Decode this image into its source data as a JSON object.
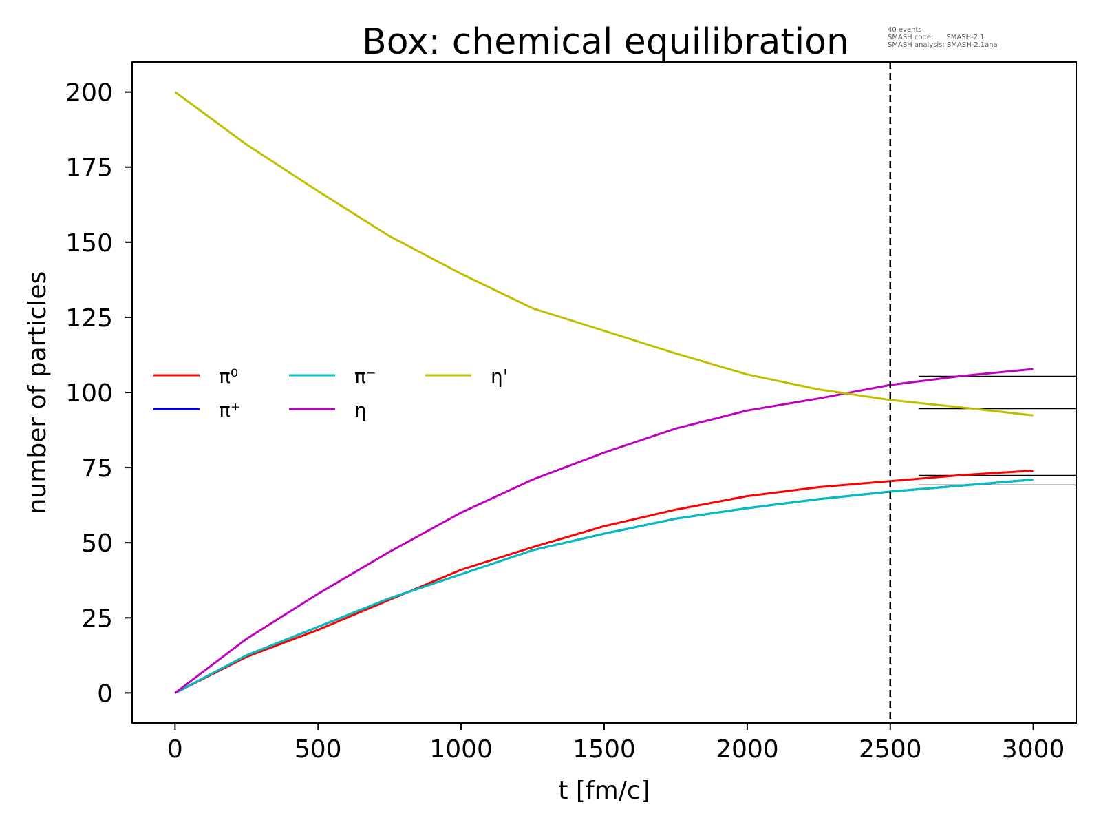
{
  "chart_data": {
    "type": "line",
    "title": "Box: chemical equilibration",
    "annotation": [
      "40 events",
      "SMASH code:      SMASH-2.1",
      "SMASH analysis: SMASH-2.1ana"
    ],
    "xlabel": "t [fm/c]",
    "ylabel": "number of particles",
    "xlim": [
      -150,
      3150
    ],
    "ylim": [
      -10,
      210
    ],
    "xticks": [
      0,
      500,
      1000,
      1500,
      2000,
      2500,
      3000
    ],
    "yticks": [
      0,
      25,
      50,
      75,
      100,
      125,
      150,
      175,
      200
    ],
    "grid": false,
    "legend_position": "center-left",
    "x": [
      0,
      250,
      500,
      750,
      1000,
      1250,
      1500,
      1750,
      2000,
      2250,
      2500,
      2750,
      3000
    ],
    "series": [
      {
        "name": "π⁰",
        "color": "#ff0000",
        "values": [
          0,
          12,
          21,
          31,
          41,
          48.5,
          55.5,
          61,
          65.5,
          68.5,
          70.5,
          72.5,
          74
        ]
      },
      {
        "name": "π⁺",
        "color": "#0000ff",
        "values": [
          0,
          12.5,
          22,
          31.5,
          39.5,
          47.5,
          53,
          58,
          61.5,
          64.5,
          67,
          69,
          71
        ]
      },
      {
        "name": "π⁻",
        "color": "#00bfbf",
        "values": [
          0,
          12.5,
          22,
          31.5,
          39.5,
          47.5,
          53,
          58,
          61.5,
          64.5,
          67,
          69,
          71
        ]
      },
      {
        "name": "η",
        "color": "#bf00bf",
        "values": [
          0,
          18,
          33,
          47,
          60,
          71,
          80,
          88,
          94,
          98,
          102.5,
          105.5,
          107.8
        ]
      },
      {
        "name": "η'",
        "color": "#bfbf00",
        "values": [
          200,
          182.5,
          167,
          152,
          139.5,
          128,
          120.5,
          113,
          106,
          101,
          97.5,
          95,
          92.4
        ]
      }
    ],
    "vertical_line": {
      "x": 2500,
      "style": "dashed",
      "color": "#000000"
    },
    "reference_lines": {
      "x_start": 2600,
      "values": [
        105.4,
        94.6,
        72.4,
        69.2
      ],
      "color": "#000000"
    }
  }
}
